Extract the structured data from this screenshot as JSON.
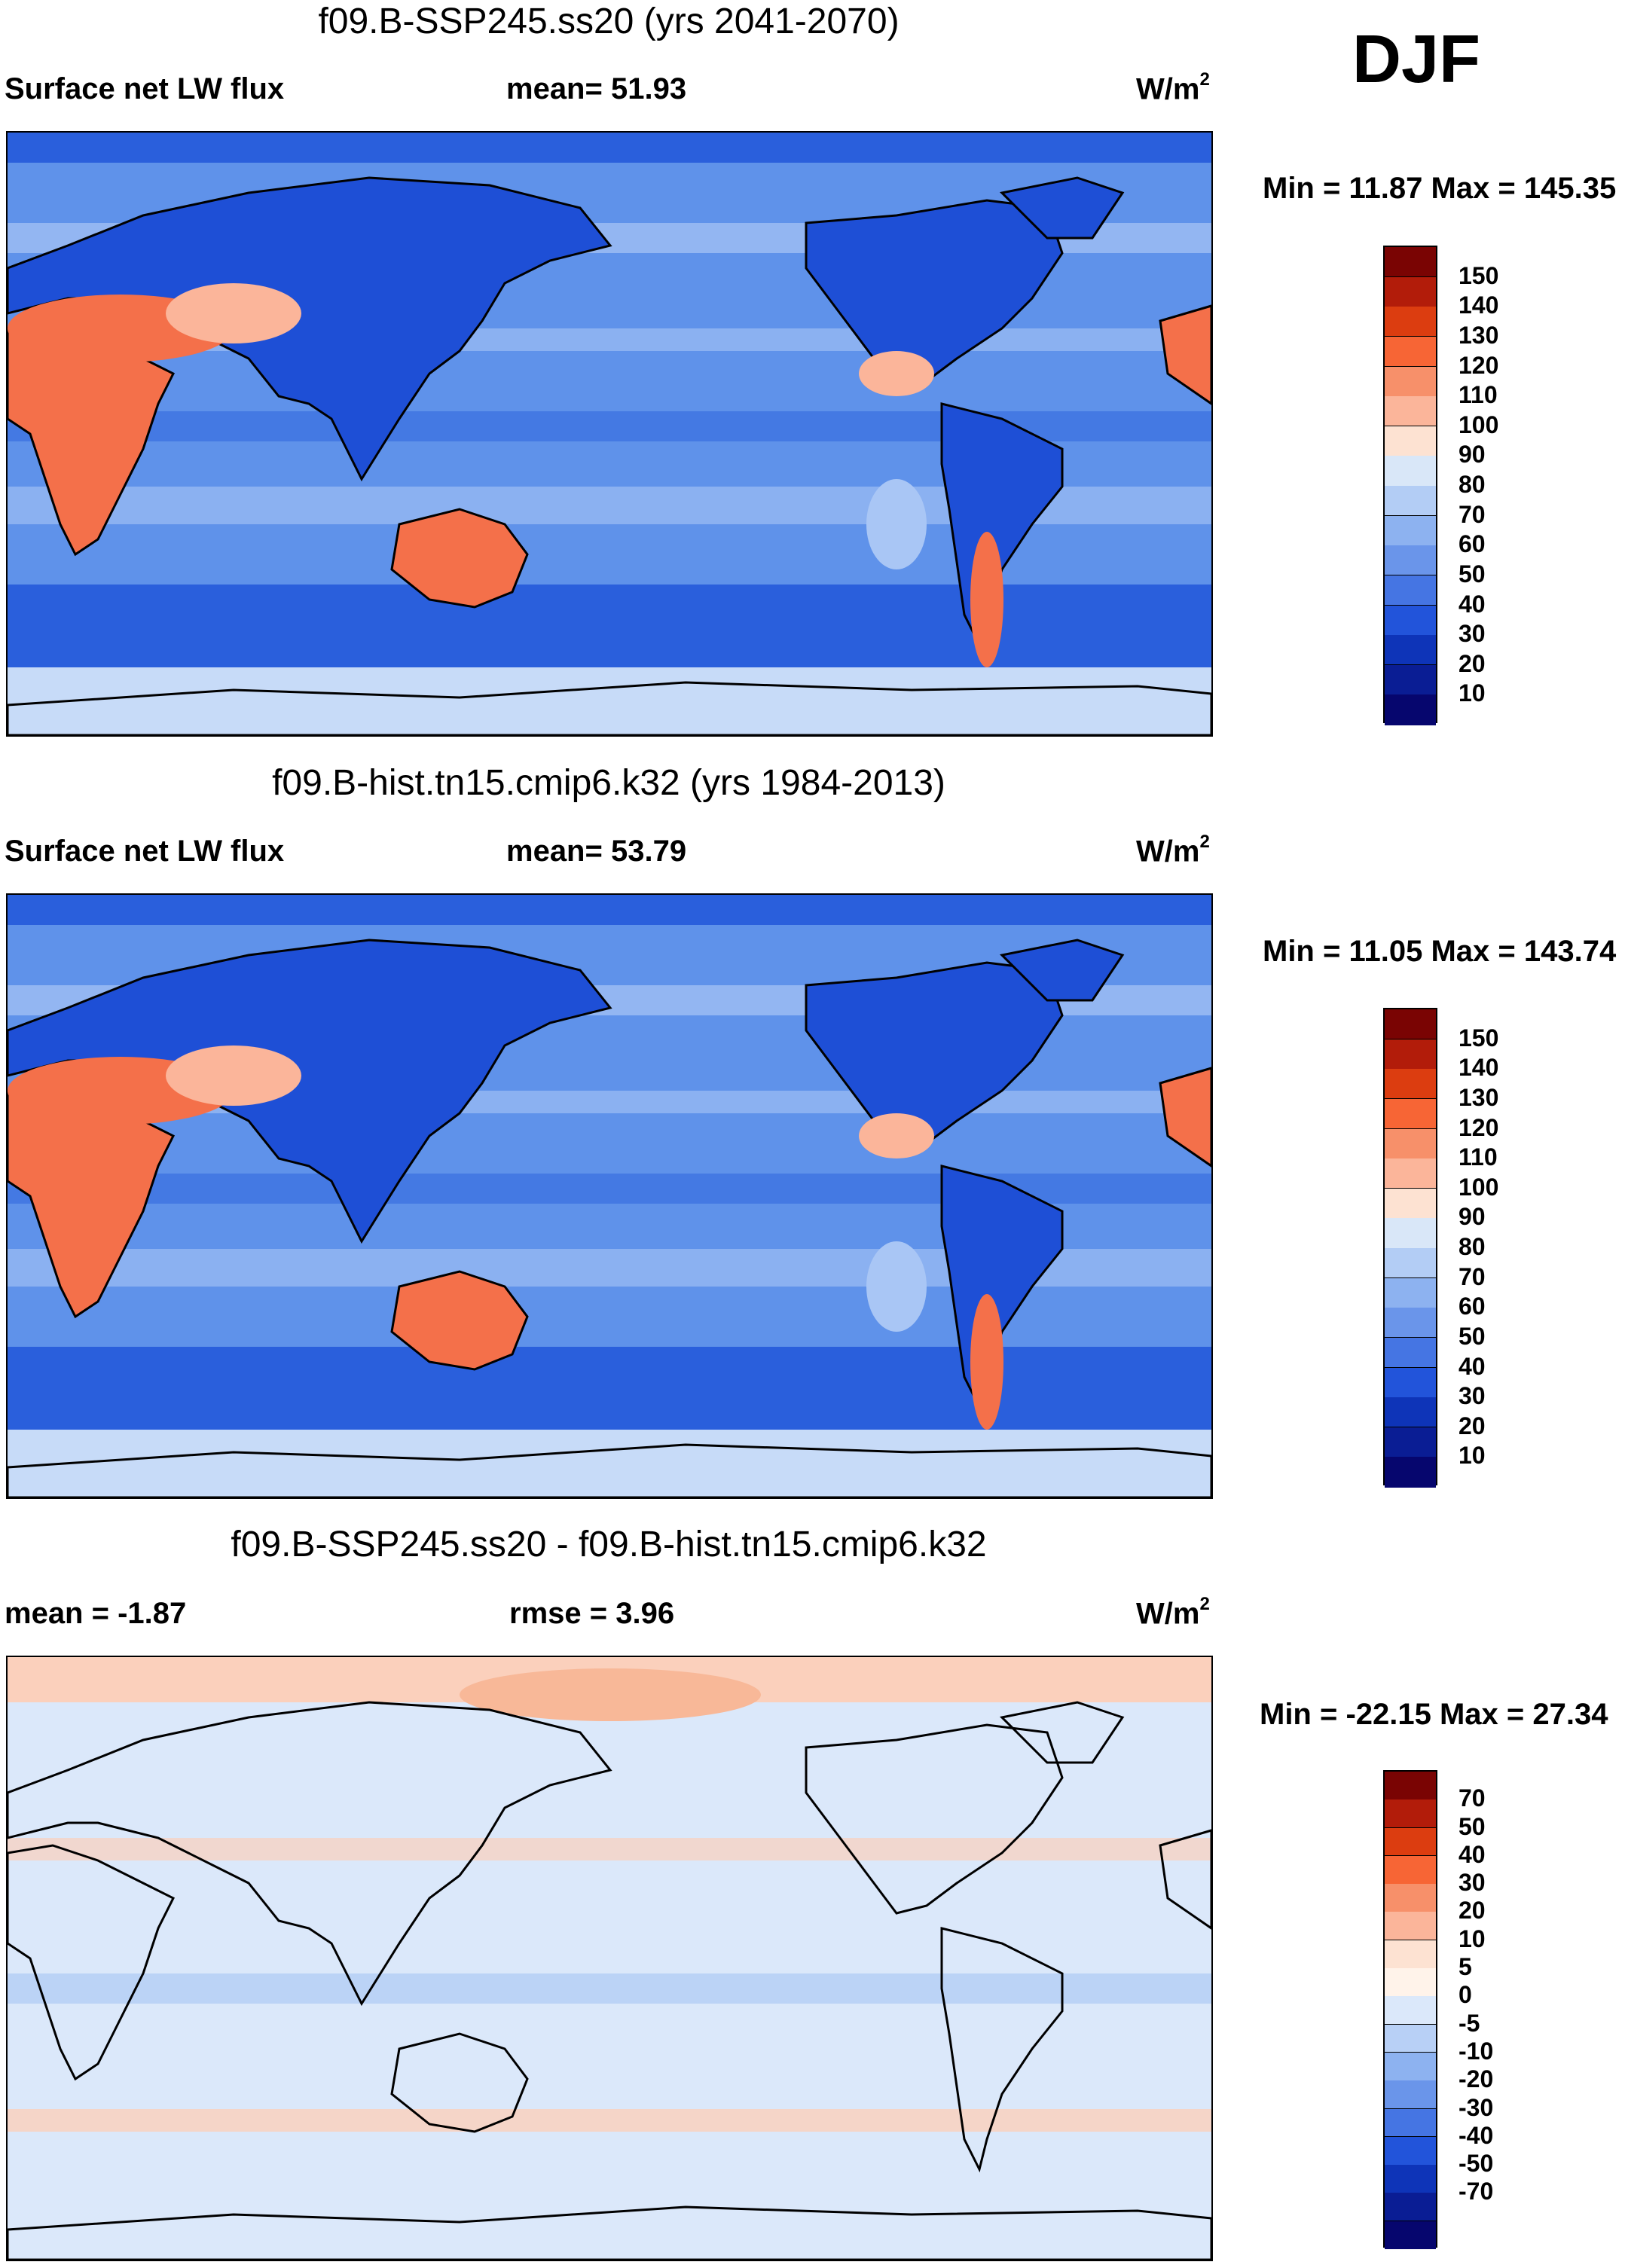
{
  "season": "DJF",
  "panels": [
    {
      "id": "future",
      "title": "f09.B-SSP245.ss20 (yrs 2041-2070)",
      "left_label": "Surface net LW flux",
      "center_label": "mean=  51.93",
      "units": "W/m",
      "units_sup": "2",
      "minmax": "Min =  11.87 Max = 145.35",
      "colorbar": {
        "colors": [
          "#7a0403",
          "#b21c0a",
          "#dc3d10",
          "#f76535",
          "#f7906a",
          "#fbb59a",
          "#fde2d2",
          "#d9e7f8",
          "#b3cdf5",
          "#8db2f0",
          "#6a95ea",
          "#4575e3",
          "#2254da",
          "#0e34b8",
          "#0a1d94",
          "#06066e"
        ],
        "labels": [
          "150",
          "140",
          "130",
          "120",
          "110",
          "100",
          "90",
          "80",
          "70",
          "60",
          "50",
          "40",
          "30",
          "20",
          "10"
        ]
      }
    },
    {
      "id": "historical",
      "title": "f09.B-hist.tn15.cmip6.k32 (yrs 1984-2013)",
      "left_label": "Surface net LW flux",
      "center_label": "mean=  53.79",
      "units": "W/m",
      "units_sup": "2",
      "minmax": "Min =  11.05 Max = 143.74",
      "colorbar": {
        "colors": [
          "#7a0403",
          "#b21c0a",
          "#dc3d10",
          "#f76535",
          "#f7906a",
          "#fbb59a",
          "#fde2d2",
          "#d9e7f8",
          "#b3cdf5",
          "#8db2f0",
          "#6a95ea",
          "#4575e3",
          "#2254da",
          "#0e34b8",
          "#0a1d94",
          "#06066e"
        ],
        "labels": [
          "150",
          "140",
          "130",
          "120",
          "110",
          "100",
          "90",
          "80",
          "70",
          "60",
          "50",
          "40",
          "30",
          "20",
          "10"
        ]
      }
    },
    {
      "id": "difference",
      "title": "f09.B-SSP245.ss20 - f09.B-hist.tn15.cmip6.k32",
      "left_label": "mean =  -1.87",
      "center_label": "rmse =   3.96",
      "units": "W/m",
      "units_sup": "2",
      "minmax": "Min = -22.15 Max =  27.34",
      "colorbar": {
        "colors": [
          "#7a0403",
          "#b21c0a",
          "#dc3d10",
          "#f76535",
          "#f7906a",
          "#fbb59a",
          "#fde2d2",
          "#fff3ea",
          "#dbe8fa",
          "#b8d0f6",
          "#8db2f0",
          "#6a95ea",
          "#4575e3",
          "#2254da",
          "#0e34b8",
          "#0a1d94",
          "#06066e"
        ],
        "labels": [
          "70",
          "50",
          "40",
          "30",
          "20",
          "10",
          "5",
          "0",
          "-5",
          "-10",
          "-20",
          "-30",
          "-40",
          "-50",
          "-70"
        ]
      }
    }
  ],
  "map_palette": {
    "ocean_future": "#5f92ea",
    "ocean_hist": "#5f92ea",
    "ocean_diff": "#dbe8fa",
    "band_dark": "#2a5fdc",
    "band_light": "#a9c6f5",
    "polar": "#c7dbf8",
    "land_hot": "#f4704a",
    "land_warm": "#fbb59a",
    "land_cold": "#1e4fd6",
    "diff_warm": "#fbd0bc",
    "diff_cool": "#b3cdf5",
    "coast": "#000000"
  }
}
